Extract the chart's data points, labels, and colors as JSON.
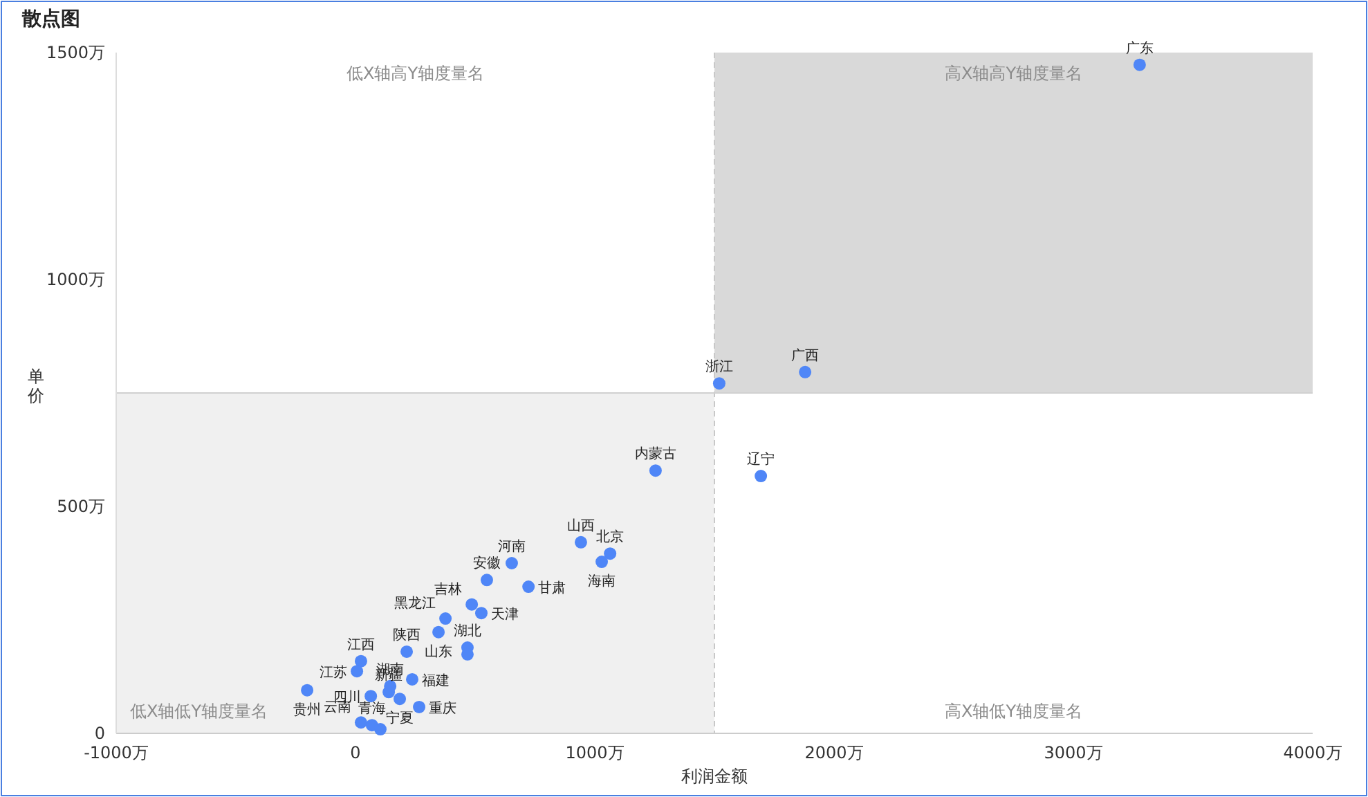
{
  "chart_data": {
    "type": "scatter",
    "title": "散点图",
    "xlabel": "利润金额",
    "ylabel": "单价",
    "xlim": [
      -1000,
      4000
    ],
    "ylim": [
      0,
      1500
    ],
    "xticks": [
      {
        "value": -1000,
        "label": "-1000万"
      },
      {
        "value": 0,
        "label": "0"
      },
      {
        "value": 1000,
        "label": "1000万"
      },
      {
        "value": 2000,
        "label": "2000万"
      },
      {
        "value": 3000,
        "label": "3000万"
      },
      {
        "value": 4000,
        "label": "4000万"
      }
    ],
    "yticks": [
      {
        "value": 0,
        "label": "0"
      },
      {
        "value": 500,
        "label": "500万"
      },
      {
        "value": 1000,
        "label": "1000万"
      },
      {
        "value": 1500,
        "label": "1500万"
      }
    ],
    "grid": false,
    "marker": "circle",
    "bands": [
      {
        "axis": "x",
        "from": -1000,
        "to": 1500,
        "color": "#f0f0f0"
      },
      {
        "axis": "x",
        "from": 1500,
        "to": 4000,
        "color": "#d9d9d9"
      }
    ],
    "ref_lines": [
      {
        "axis": "x",
        "value": 1500,
        "color": "#c8c8c8",
        "line_style": "dashed"
      },
      {
        "axis": "y",
        "value": 750,
        "color": "#d0d0d0",
        "line_style": "solid"
      }
    ],
    "annotations": [
      "低X轴高Y轴度量名",
      "高X轴高Y轴度量名",
      "低X轴低Y轴度量名",
      "高X轴低Y轴度量名"
    ],
    "series": [
      {
        "color": "#4f86f7",
        "x": [
          3277,
          1879,
          1520,
          1694,
          1254,
          942,
          1064,
          1029,
          653,
          549,
          723,
          486,
          526,
          376,
          347,
          214,
          468,
          468,
          23,
          6,
          145,
          237,
          64,
          139,
          185,
          266,
          -202,
          23,
          69,
          104
        ],
        "values": [
          1473,
          796,
          771,
          567,
          579,
          421,
          396,
          378,
          375,
          338,
          323,
          284,
          265,
          253,
          223,
          180,
          189,
          174,
          159,
          137,
          104,
          119,
          82,
          91,
          76,
          58,
          95,
          24,
          18,
          9
        ],
        "value_labels": [
          "广东",
          "广西",
          "浙江",
          "辽宁",
          "内蒙古",
          "山西",
          "北京",
          "海南",
          "河南",
          "安徽",
          "甘肃",
          "吉林",
          "天津",
          "黑龙江",
          "山东",
          "陕西",
          "湖北",
          null,
          "江西",
          "江苏",
          "湖南",
          "福建",
          "四川",
          "新疆",
          "宁夏",
          "重庆",
          "贵州",
          "云南",
          "青海",
          null
        ]
      }
    ]
  }
}
